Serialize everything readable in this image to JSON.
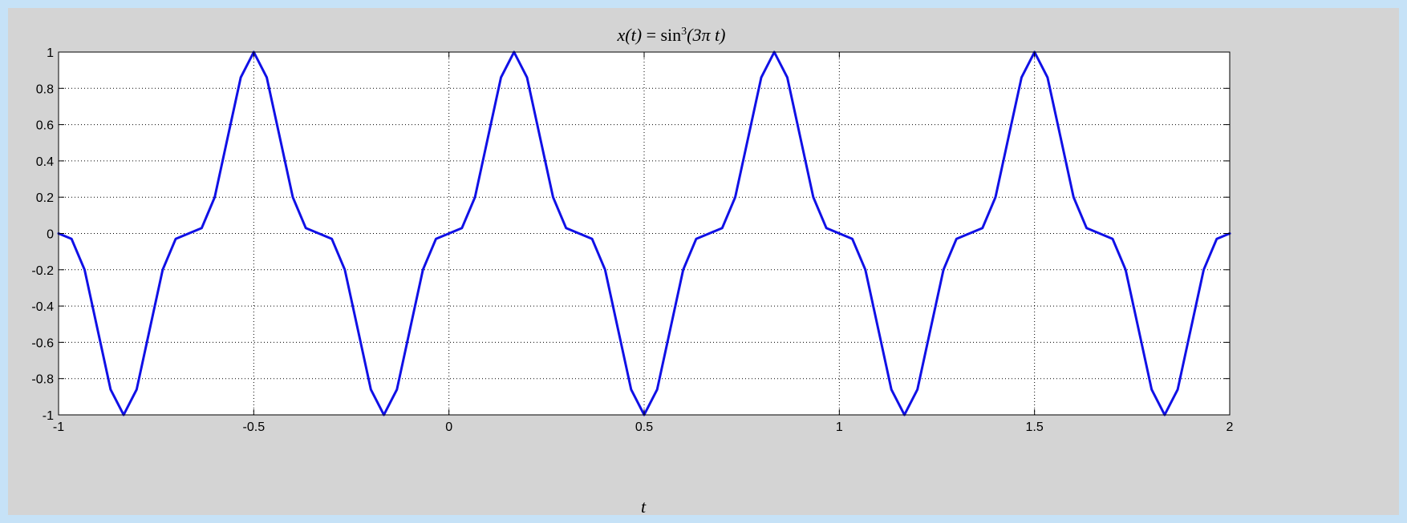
{
  "chart_data": {
    "type": "line",
    "title": {
      "lhs": "x(t)",
      "equals": " = ",
      "func": "sin",
      "exponent": "3",
      "arg": "(3π t)"
    },
    "xlabel": "t",
    "ylabel": "",
    "xlim": [
      -1,
      2
    ],
    "ylim": [
      -1,
      1
    ],
    "grid": true,
    "xticks": [
      -1,
      -0.5,
      0,
      0.5,
      1,
      1.5,
      2
    ],
    "xtick_labels": [
      "-1",
      "-0.5",
      "0",
      "0.5",
      "1",
      "1.5",
      "2"
    ],
    "yticks": [
      1,
      0.8,
      0.6,
      0.4,
      0.2,
      0,
      -0.2,
      -0.4,
      -0.6,
      -0.8,
      -1
    ],
    "ytick_labels": [
      "1",
      "0.8",
      "0.6",
      "0.4",
      "0.2",
      "0",
      "-0.2",
      "-0.4",
      "-0.6",
      "-0.8",
      "-1"
    ],
    "line_color": "#1010e6",
    "series": [
      {
        "x": [
          -1,
          -0.9667,
          -0.9333,
          -0.9,
          -0.8667,
          -0.8333,
          -0.8,
          -0.7667,
          -0.7333,
          -0.7,
          -0.6667,
          -0.6333,
          -0.6,
          -0.5667,
          -0.5333,
          -0.5,
          -0.4667,
          -0.4333,
          -0.4,
          -0.3667,
          -0.3333,
          -0.3,
          -0.2667,
          -0.2333,
          -0.2,
          -0.1667,
          -0.1333,
          -0.1,
          -0.0667,
          -0.0333,
          0,
          0.0333,
          0.0667,
          0.1,
          0.1333,
          0.1667,
          0.2,
          0.2333,
          0.2667,
          0.3,
          0.3333,
          0.3667,
          0.4,
          0.4333,
          0.4667,
          0.5,
          0.5333,
          0.5667,
          0.6,
          0.6333,
          0.6667,
          0.7,
          0.7333,
          0.7667,
          0.8,
          0.8333,
          0.8667,
          0.9,
          0.9333,
          0.9667,
          1,
          1.0333,
          1.0667,
          1.1,
          1.1333,
          1.1667,
          1.2,
          1.2333,
          1.2667,
          1.3,
          1.3333,
          1.3667,
          1.4,
          1.4333,
          1.4667,
          1.5,
          1.5333,
          1.5667,
          1.6,
          1.6333,
          1.6667,
          1.7,
          1.7333,
          1.7667,
          1.8,
          1.8333,
          1.8667,
          1.9,
          1.9333,
          1.9667,
          2
        ],
        "y": [
          0,
          -0.03,
          -0.2,
          -0.53,
          -0.86,
          -1,
          -0.86,
          -0.53,
          -0.2,
          -0.03,
          0,
          0.03,
          0.2,
          0.53,
          0.86,
          1,
          0.86,
          0.53,
          0.2,
          0.03,
          0,
          -0.03,
          -0.2,
          -0.53,
          -0.86,
          -1,
          -0.86,
          -0.53,
          -0.2,
          -0.03,
          0,
          0.03,
          0.2,
          0.53,
          0.86,
          1,
          0.86,
          0.53,
          0.2,
          0.03,
          0,
          -0.03,
          -0.2,
          -0.53,
          -0.86,
          -1,
          -0.86,
          -0.53,
          -0.2,
          -0.03,
          0,
          0.03,
          0.2,
          0.53,
          0.86,
          1,
          0.86,
          0.53,
          0.2,
          0.03,
          0,
          -0.03,
          -0.2,
          -0.53,
          -0.86,
          -1,
          -0.86,
          -0.53,
          -0.2,
          -0.03,
          0,
          0.03,
          0.2,
          0.53,
          0.86,
          1,
          0.86,
          0.53,
          0.2,
          0.03,
          0,
          -0.03,
          -0.2,
          -0.53,
          -0.86,
          -1,
          -0.86,
          -0.53,
          -0.2,
          -0.03,
          0
        ]
      }
    ]
  }
}
